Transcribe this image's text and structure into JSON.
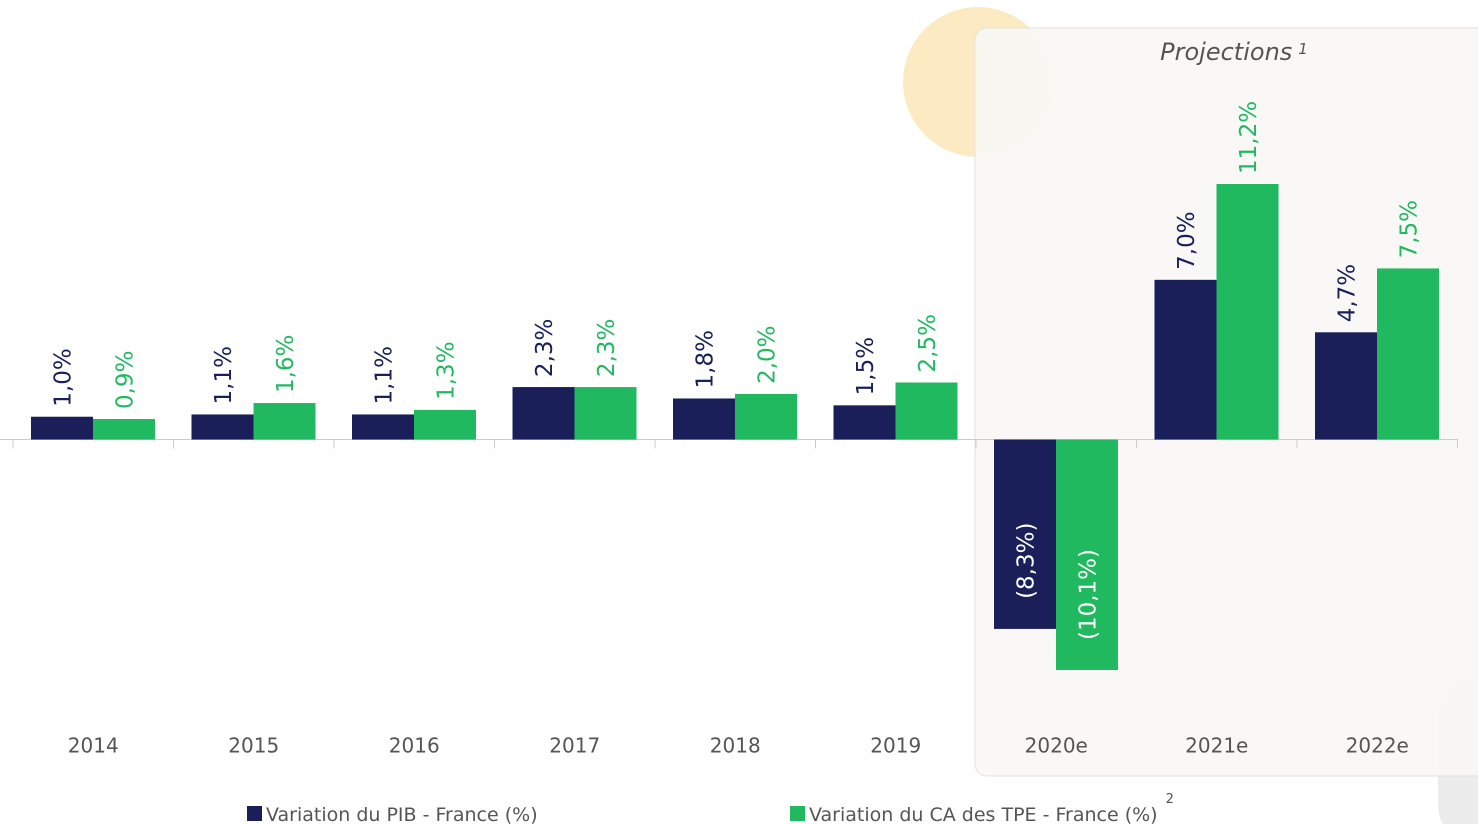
{
  "chart_data": {
    "type": "bar",
    "annotation": "Projections",
    "annotation_note": "1",
    "categories": [
      "2014",
      "2015",
      "2016",
      "2017",
      "2018",
      "2019",
      "2020e",
      "2021e",
      "2022e"
    ],
    "projection_categories": [
      "2020e",
      "2021e",
      "2022e"
    ],
    "series": [
      {
        "name": "Variation du PIB - France (%)",
        "color": "#1a1f5a",
        "values": [
          1.0,
          1.1,
          1.1,
          2.3,
          1.8,
          1.5,
          -8.3,
          7.0,
          4.7
        ],
        "value_labels": [
          "1,0%",
          "1,1%",
          "1,1%",
          "2,3%",
          "1,8%",
          "1,5%",
          "(8,3%)",
          "7,0%",
          "4,7%"
        ]
      },
      {
        "name": "Variation du CA des TPE - France (%)",
        "note": "2",
        "color": "#21b960",
        "values": [
          0.9,
          1.6,
          1.3,
          2.3,
          2.0,
          2.5,
          -10.1,
          11.2,
          7.5
        ],
        "value_labels": [
          "0,9%",
          "1,6%",
          "1,3%",
          "2,3%",
          "2,0%",
          "2,5%",
          "(10,1%)",
          "11,2%",
          "7,5%"
        ]
      }
    ],
    "legend": "bottom",
    "grid": false
  }
}
